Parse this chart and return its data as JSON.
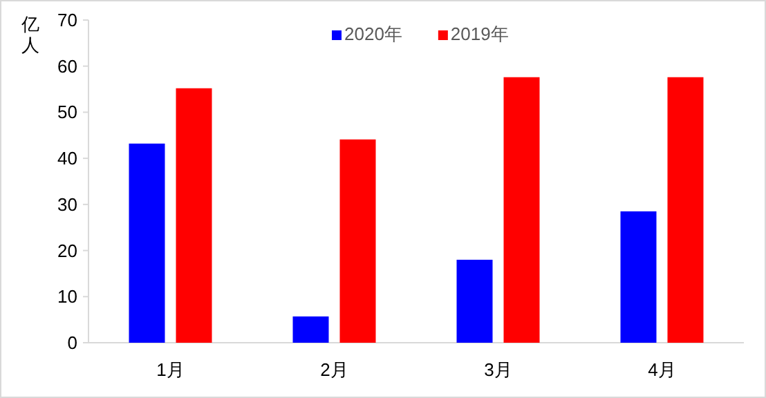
{
  "chart_data": {
    "type": "bar",
    "ylabel": "亿人",
    "categories": [
      "1月",
      "2月",
      "3月",
      "4月"
    ],
    "series": [
      {
        "name": "2020年",
        "color": "#0000ff",
        "values": [
          43.2,
          5.7,
          18.0,
          28.5
        ]
      },
      {
        "name": "2019年",
        "color": "#ff0000",
        "values": [
          55.2,
          44.1,
          57.6,
          57.6
        ]
      }
    ],
    "ylim": [
      0,
      70
    ],
    "yticks": [
      0,
      10,
      20,
      30,
      40,
      50,
      60,
      70
    ],
    "legend": "top"
  }
}
